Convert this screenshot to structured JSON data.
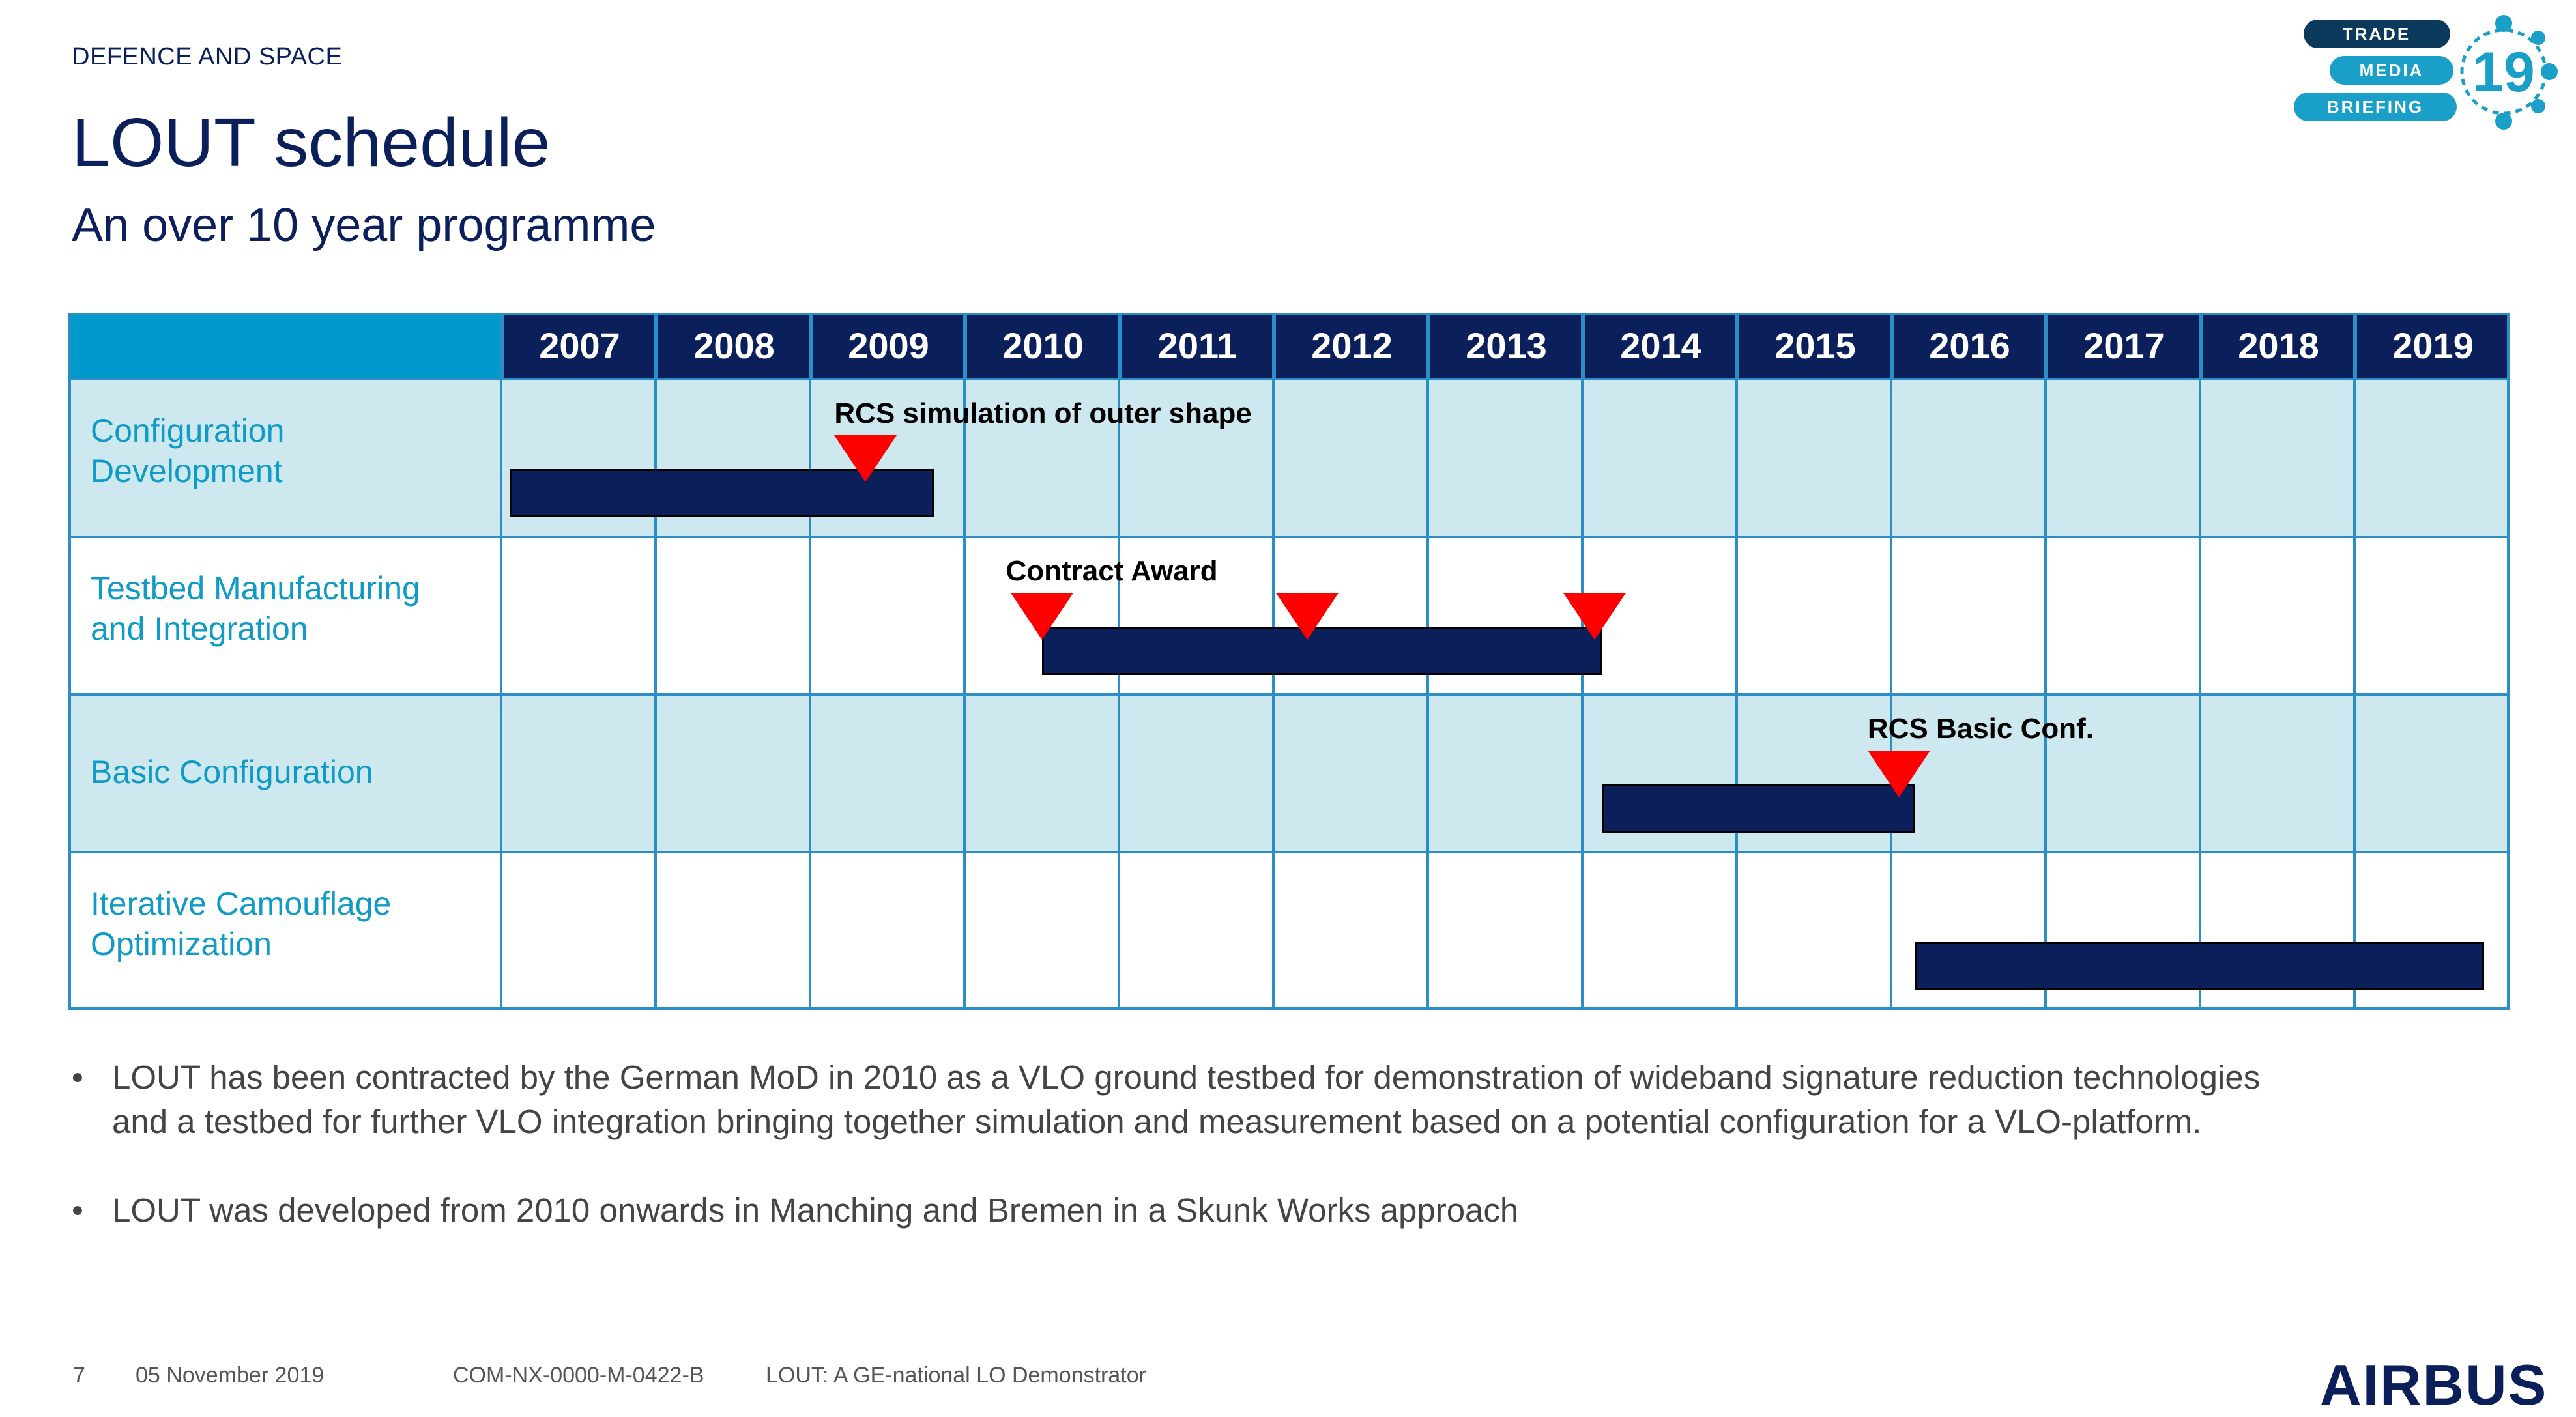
{
  "header": {
    "division": "DEFENCE AND SPACE",
    "title": "LOUT schedule",
    "subtitle": "An over 10 year programme"
  },
  "logo": {
    "lines": [
      "TRADE",
      "MEDIA",
      "BRIEFING"
    ],
    "year": "19",
    "accent": "#1aa0c8",
    "dark": "#0b3a5c"
  },
  "gantt": {
    "years": [
      "2007",
      "2008",
      "2009",
      "2010",
      "2011",
      "2012",
      "2013",
      "2014",
      "2015",
      "2016",
      "2017",
      "2018",
      "2019"
    ],
    "rows": [
      {
        "label_lines": [
          "Configuration",
          "Development"
        ],
        "shaded": true
      },
      {
        "label_lines": [
          "Testbed Manufacturing",
          "and Integration"
        ],
        "shaded": false
      },
      {
        "label_lines": [
          "Basic Configuration"
        ],
        "shaded": true
      },
      {
        "label_lines": [
          "Iterative Camouflage",
          "Optimization"
        ],
        "shaded": false
      }
    ],
    "bars": [
      {
        "row": 0,
        "start": 2007.06,
        "end": 2009.8
      },
      {
        "row": 1,
        "start": 2010.5,
        "end": 2014.13
      },
      {
        "row": 2,
        "start": 2014.13,
        "end": 2016.15
      },
      {
        "row": 3,
        "start": 2016.15,
        "end": 2019.84
      }
    ],
    "milestones": [
      {
        "row": 0,
        "at": 2009.36,
        "label": "RCS simulation of outer shape"
      },
      {
        "row": 1,
        "at": 2010.5,
        "label": "Contract Award"
      },
      {
        "row": 1,
        "at": 2012.22,
        "label": ""
      },
      {
        "row": 1,
        "at": 2014.08,
        "label": ""
      },
      {
        "row": 2,
        "at": 2016.05,
        "label": "RCS Basic Conf."
      }
    ],
    "colors": {
      "header_fill": "#0b1f5b",
      "header_corner": "#0099cc",
      "grid": "#2b8fc6",
      "shade": "#cde8ef",
      "bar": "#0b1f5b",
      "milestone": "#ff0000",
      "row_label": "#0f9bc6"
    }
  },
  "bullets": [
    {
      "marker": "•",
      "lines": [
        "LOUT has been contracted by the German MoD in 2010 as a VLO ground testbed for demonstration of wideband signature reduction technologies",
        "and a testbed for further VLO integration bringing together simulation and measurement based on a potential configuration for a VLO-platform."
      ]
    },
    {
      "marker": "•",
      "lines": [
        "LOUT was developed from 2010 onwards in Manching and Bremen in a Skunk Works approach"
      ]
    }
  ],
  "footer": {
    "page": "7",
    "date": "05 November 2019",
    "doc_ref": "COM-NX-0000-M-0422-B",
    "doc_title": "LOUT: A GE-national LO Demonstrator",
    "brand": "AIRBUS"
  }
}
